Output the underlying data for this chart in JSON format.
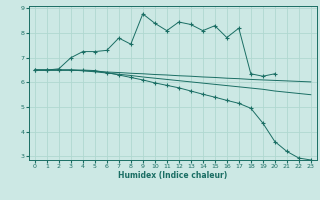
{
  "xlabel": "Humidex (Indice chaleur)",
  "xlim": [
    0,
    23
  ],
  "ylim": [
    3,
    9
  ],
  "yticks": [
    3,
    4,
    5,
    6,
    7,
    8,
    9
  ],
  "xticks": [
    0,
    1,
    2,
    3,
    4,
    5,
    6,
    7,
    8,
    9,
    10,
    11,
    12,
    13,
    14,
    15,
    16,
    17,
    18,
    19,
    20,
    21,
    22,
    23
  ],
  "bg_color": "#cce8e4",
  "grid_color": "#b0d8d0",
  "line_color": "#1a6e64",
  "lines": [
    {
      "x": [
        0,
        1,
        2,
        3,
        4,
        5,
        6,
        7,
        8,
        9,
        10,
        11,
        12,
        13,
        14,
        15,
        16,
        17,
        18,
        19,
        20,
        21,
        22,
        23
      ],
      "y": [
        6.5,
        6.5,
        6.55,
        7.0,
        7.25,
        7.25,
        7.3,
        7.8,
        7.55,
        8.78,
        8.4,
        8.1,
        8.45,
        8.35,
        8.1,
        8.3,
        7.82,
        8.2,
        6.35,
        6.25,
        6.35,
        null,
        null,
        null
      ],
      "has_marker": true
    },
    {
      "x": [
        0,
        1,
        2,
        3,
        4,
        5,
        6,
        7,
        8,
        9,
        10,
        11,
        12,
        13,
        14,
        15,
        16,
        17,
        18,
        19,
        20,
        21,
        22,
        23
      ],
      "y": [
        6.5,
        6.5,
        6.5,
        6.5,
        6.48,
        6.45,
        6.42,
        6.4,
        6.37,
        6.35,
        6.32,
        6.3,
        6.27,
        6.25,
        6.22,
        6.2,
        6.17,
        6.15,
        6.12,
        6.1,
        6.08,
        6.06,
        6.04,
        6.02
      ],
      "has_marker": false
    },
    {
      "x": [
        0,
        1,
        2,
        3,
        4,
        5,
        6,
        7,
        8,
        9,
        10,
        11,
        12,
        13,
        14,
        15,
        16,
        17,
        18,
        19,
        20,
        21,
        22,
        23
      ],
      "y": [
        6.5,
        6.5,
        6.5,
        6.5,
        6.5,
        6.48,
        6.4,
        6.3,
        6.2,
        6.1,
        5.98,
        5.88,
        5.78,
        5.65,
        5.52,
        5.4,
        5.27,
        5.15,
        4.95,
        4.35,
        3.6,
        3.2,
        2.93,
        2.85
      ],
      "has_marker": true
    },
    {
      "x": [
        0,
        1,
        2,
        3,
        4,
        5,
        6,
        7,
        8,
        9,
        10,
        11,
        12,
        13,
        14,
        15,
        16,
        17,
        18,
        19,
        20,
        21,
        22,
        23
      ],
      "y": [
        6.5,
        6.5,
        6.5,
        6.5,
        6.47,
        6.43,
        6.38,
        6.33,
        6.28,
        6.22,
        6.17,
        6.12,
        6.07,
        6.02,
        5.97,
        5.92,
        5.87,
        5.82,
        5.77,
        5.72,
        5.65,
        5.6,
        5.55,
        5.5
      ],
      "has_marker": false
    }
  ]
}
